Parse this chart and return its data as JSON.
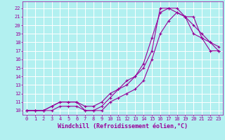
{
  "xlabel": "Windchill (Refroidissement éolien,°C)",
  "background_color": "#b2f0f0",
  "grid_color": "#ffffff",
  "line_color": "#990099",
  "xlim": [
    -0.5,
    23.5
  ],
  "ylim": [
    9.5,
    22.8
  ],
  "xticks": [
    0,
    1,
    2,
    3,
    4,
    5,
    6,
    7,
    8,
    9,
    10,
    11,
    12,
    13,
    14,
    15,
    16,
    17,
    18,
    19,
    20,
    21,
    22,
    23
  ],
  "yticks": [
    10,
    11,
    12,
    13,
    14,
    15,
    16,
    17,
    18,
    19,
    20,
    21,
    22
  ],
  "curve1_x": [
    0,
    1,
    2,
    3,
    4,
    5,
    6,
    7,
    8,
    9,
    10,
    11,
    12,
    13,
    14,
    15,
    16,
    17,
    18,
    19,
    20,
    21,
    22,
    23
  ],
  "curve1_y": [
    10,
    10,
    10,
    10.5,
    11,
    11,
    11,
    10,
    10,
    10.5,
    11.5,
    12.5,
    13,
    14,
    15.5,
    18.5,
    21.5,
    22,
    22,
    21,
    20,
    19,
    18,
    17.5
  ],
  "curve2_x": [
    0,
    1,
    2,
    3,
    4,
    5,
    6,
    7,
    8,
    9,
    10,
    11,
    12,
    13,
    14,
    15,
    16,
    17,
    18,
    19,
    20,
    21,
    22,
    23
  ],
  "curve2_y": [
    10,
    10,
    10,
    10.5,
    11,
    11,
    11,
    10.5,
    10.5,
    11,
    12,
    12.5,
    13.5,
    14,
    15,
    17,
    22,
    22,
    21.5,
    21,
    19,
    18.5,
    17,
    17
  ],
  "curve3_x": [
    0,
    1,
    2,
    3,
    4,
    5,
    6,
    7,
    8,
    9,
    10,
    11,
    12,
    13,
    14,
    15,
    16,
    17,
    18,
    19,
    20,
    21,
    22,
    23
  ],
  "curve3_y": [
    10,
    10,
    10,
    10,
    10.5,
    10.5,
    10.5,
    10,
    10,
    10,
    11,
    11.5,
    12,
    12.5,
    13.5,
    16,
    19,
    20.5,
    21.5,
    21,
    21,
    18.5,
    18,
    17
  ],
  "marker": "+",
  "markersize": 3.5,
  "linewidth": 0.8,
  "tick_fontsize": 5.0,
  "label_fontsize": 6.0
}
